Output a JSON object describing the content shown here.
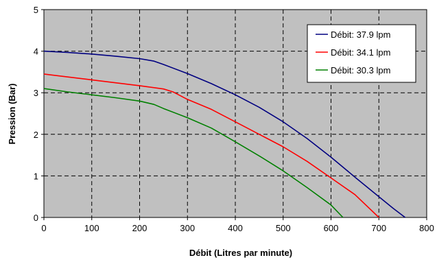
{
  "chart_data": {
    "type": "line",
    "title": "",
    "xlabel": "Débit (Litres par minute)",
    "ylabel": "Pression (Bar)",
    "xlim": [
      0,
      800
    ],
    "ylim": [
      0,
      5
    ],
    "xticks": [
      0,
      100,
      200,
      300,
      400,
      500,
      600,
      700,
      800
    ],
    "yticks": [
      0,
      1,
      2,
      3,
      4,
      5
    ],
    "xtick_labels": [
      "0",
      "100",
      "200",
      "300",
      "400",
      "500",
      "600",
      "700",
      "800"
    ],
    "ytick_labels": [
      "0",
      "1",
      "2",
      "3",
      "4",
      "5"
    ],
    "grid": true,
    "plot_background": "#c0c0c0",
    "legend_position": "top-right",
    "series": [
      {
        "name": "Débit: 37.9 lpm",
        "color": "#000080",
        "points": [
          [
            0,
            4.0
          ],
          [
            50,
            3.97
          ],
          [
            100,
            3.93
          ],
          [
            150,
            3.88
          ],
          [
            200,
            3.82
          ],
          [
            230,
            3.76
          ],
          [
            250,
            3.68
          ],
          [
            300,
            3.46
          ],
          [
            350,
            3.22
          ],
          [
            400,
            2.95
          ],
          [
            450,
            2.65
          ],
          [
            500,
            2.3
          ],
          [
            550,
            1.9
          ],
          [
            600,
            1.45
          ],
          [
            650,
            0.97
          ],
          [
            700,
            0.5
          ],
          [
            730,
            0.22
          ],
          [
            755,
            0.0
          ]
        ]
      },
      {
        "name": "Débit: 34.1 lpm",
        "color": "#ff0000",
        "points": [
          [
            0,
            3.45
          ],
          [
            50,
            3.38
          ],
          [
            100,
            3.31
          ],
          [
            150,
            3.24
          ],
          [
            200,
            3.17
          ],
          [
            250,
            3.09
          ],
          [
            270,
            3.02
          ],
          [
            300,
            2.84
          ],
          [
            350,
            2.6
          ],
          [
            400,
            2.3
          ],
          [
            450,
            2.0
          ],
          [
            500,
            1.7
          ],
          [
            550,
            1.35
          ],
          [
            600,
            0.95
          ],
          [
            650,
            0.55
          ],
          [
            700,
            0.0
          ]
        ]
      },
      {
        "name": "Débit: 30.3 lpm",
        "color": "#008000",
        "points": [
          [
            0,
            3.1
          ],
          [
            50,
            3.02
          ],
          [
            100,
            2.95
          ],
          [
            150,
            2.88
          ],
          [
            200,
            2.8
          ],
          [
            230,
            2.72
          ],
          [
            250,
            2.62
          ],
          [
            300,
            2.4
          ],
          [
            350,
            2.15
          ],
          [
            400,
            1.82
          ],
          [
            450,
            1.48
          ],
          [
            500,
            1.12
          ],
          [
            550,
            0.72
          ],
          [
            600,
            0.3
          ],
          [
            625,
            0.0
          ]
        ]
      }
    ]
  }
}
